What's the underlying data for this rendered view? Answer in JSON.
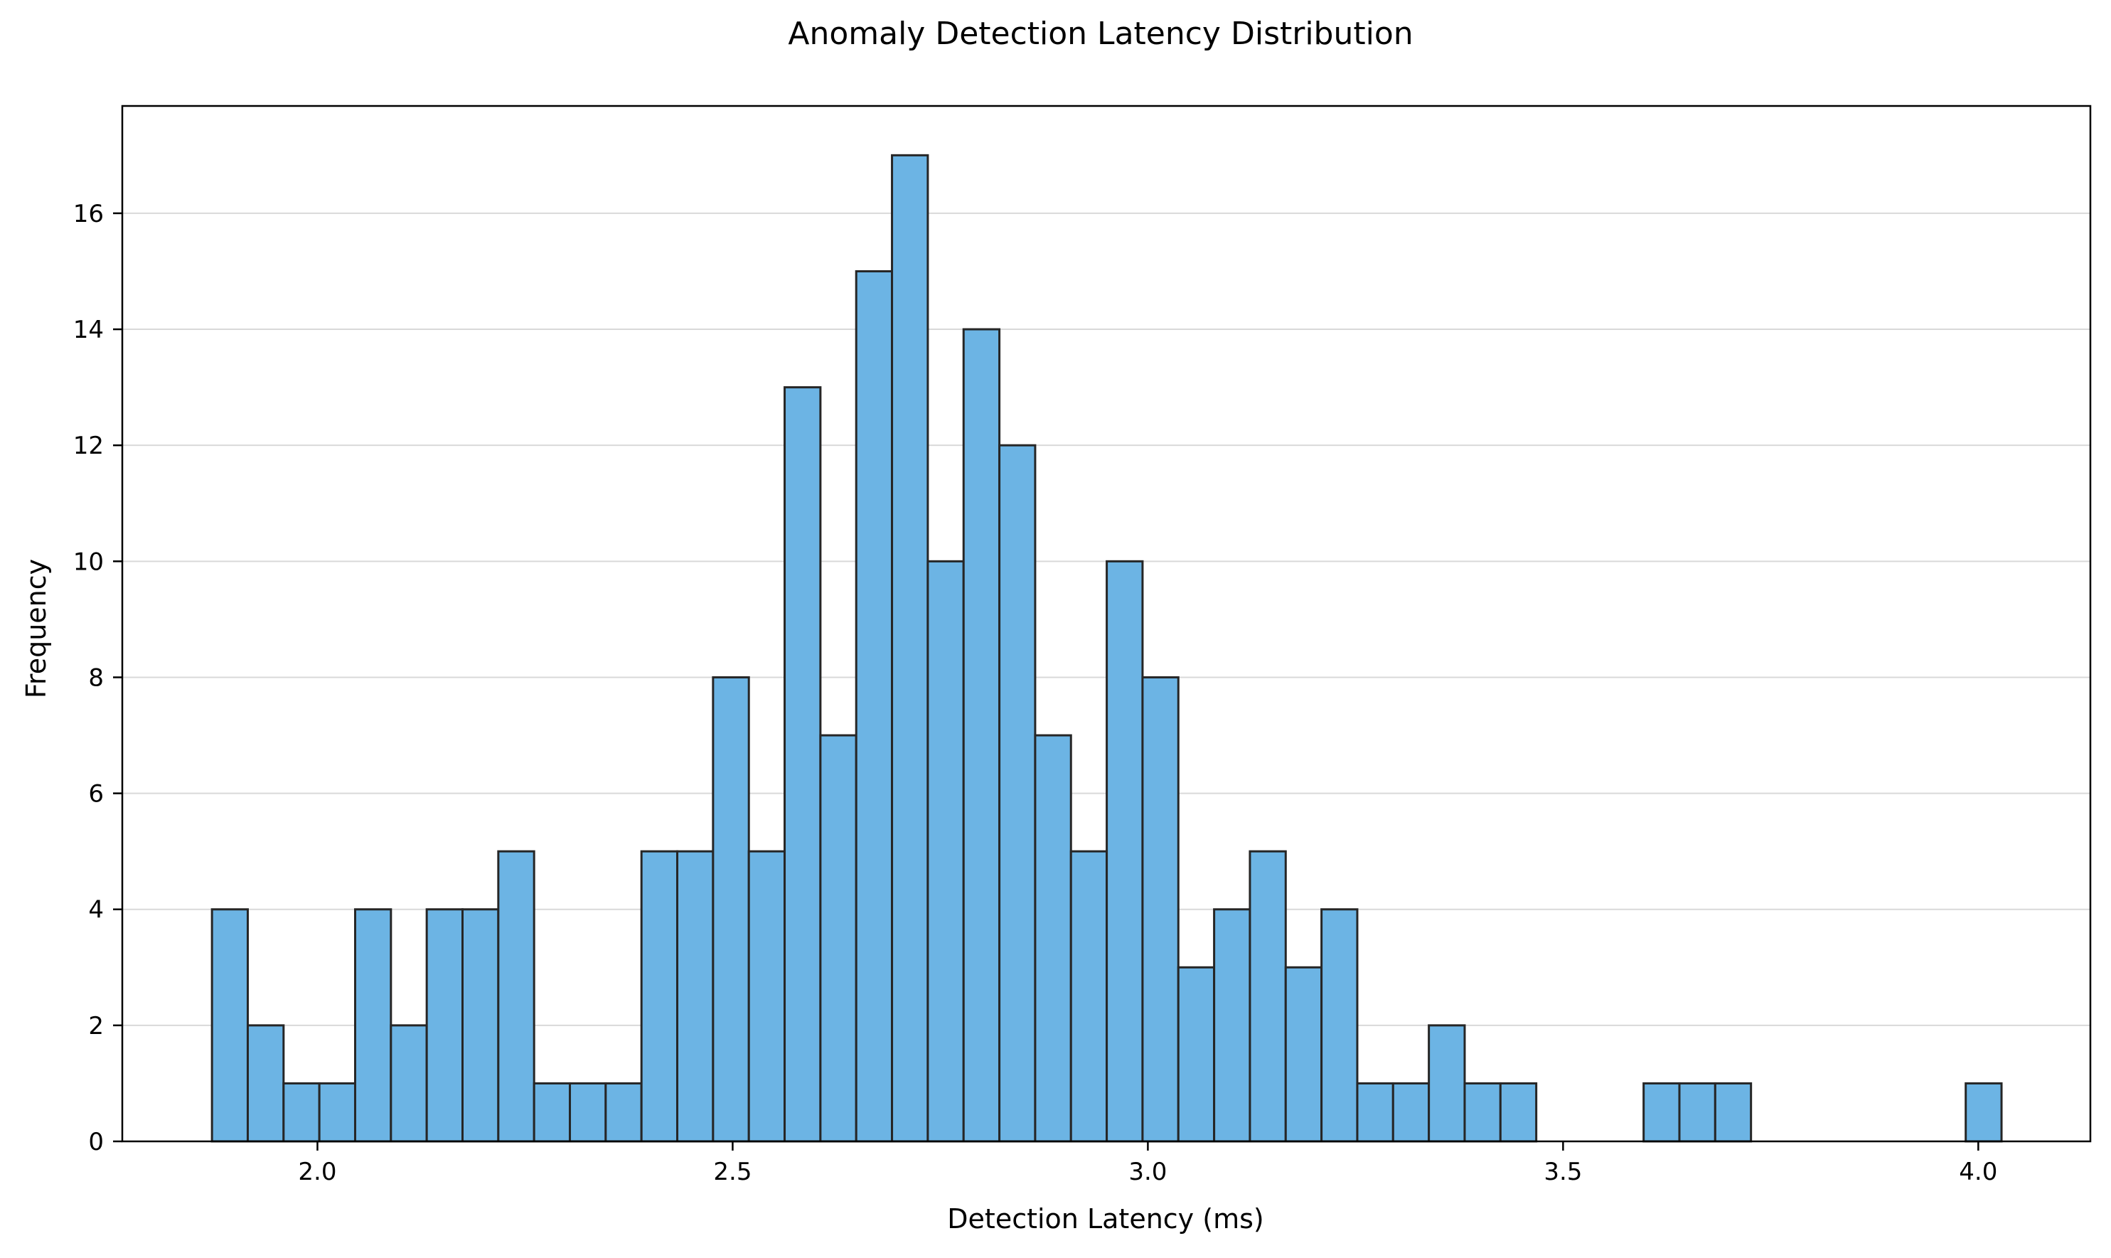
{
  "chart_data": {
    "type": "histogram",
    "title": "Anomaly Detection Latency Distribution",
    "xlabel": "Detection Latency (ms)",
    "ylabel": "Frequency",
    "xlim": [
      1.765,
      4.135
    ],
    "ylim": [
      0,
      17.85
    ],
    "xticks": [
      2.0,
      2.5,
      3.0,
      3.5,
      4.0
    ],
    "xtick_labels": [
      "2.0",
      "2.5",
      "3.0",
      "3.5",
      "4.0"
    ],
    "yticks": [
      0,
      2,
      4,
      6,
      8,
      10,
      12,
      14,
      16
    ],
    "ytick_labels": [
      "0",
      "2",
      "4",
      "6",
      "8",
      "10",
      "12",
      "14",
      "16"
    ],
    "grid": "horizontal",
    "bin_start": 1.873,
    "bin_width": 0.0431,
    "counts": [
      4,
      2,
      1,
      1,
      4,
      2,
      4,
      4,
      5,
      1,
      1,
      1,
      5,
      5,
      8,
      5,
      13,
      7,
      15,
      17,
      10,
      14,
      12,
      7,
      5,
      10,
      8,
      3,
      4,
      5,
      3,
      4,
      1,
      1,
      2,
      1,
      1,
      0,
      0,
      0,
      1,
      1,
      1,
      0,
      0,
      0,
      0,
      0,
      0,
      1
    ],
    "bar_color": "#6cb4e4",
    "edge_color": "#262626"
  }
}
